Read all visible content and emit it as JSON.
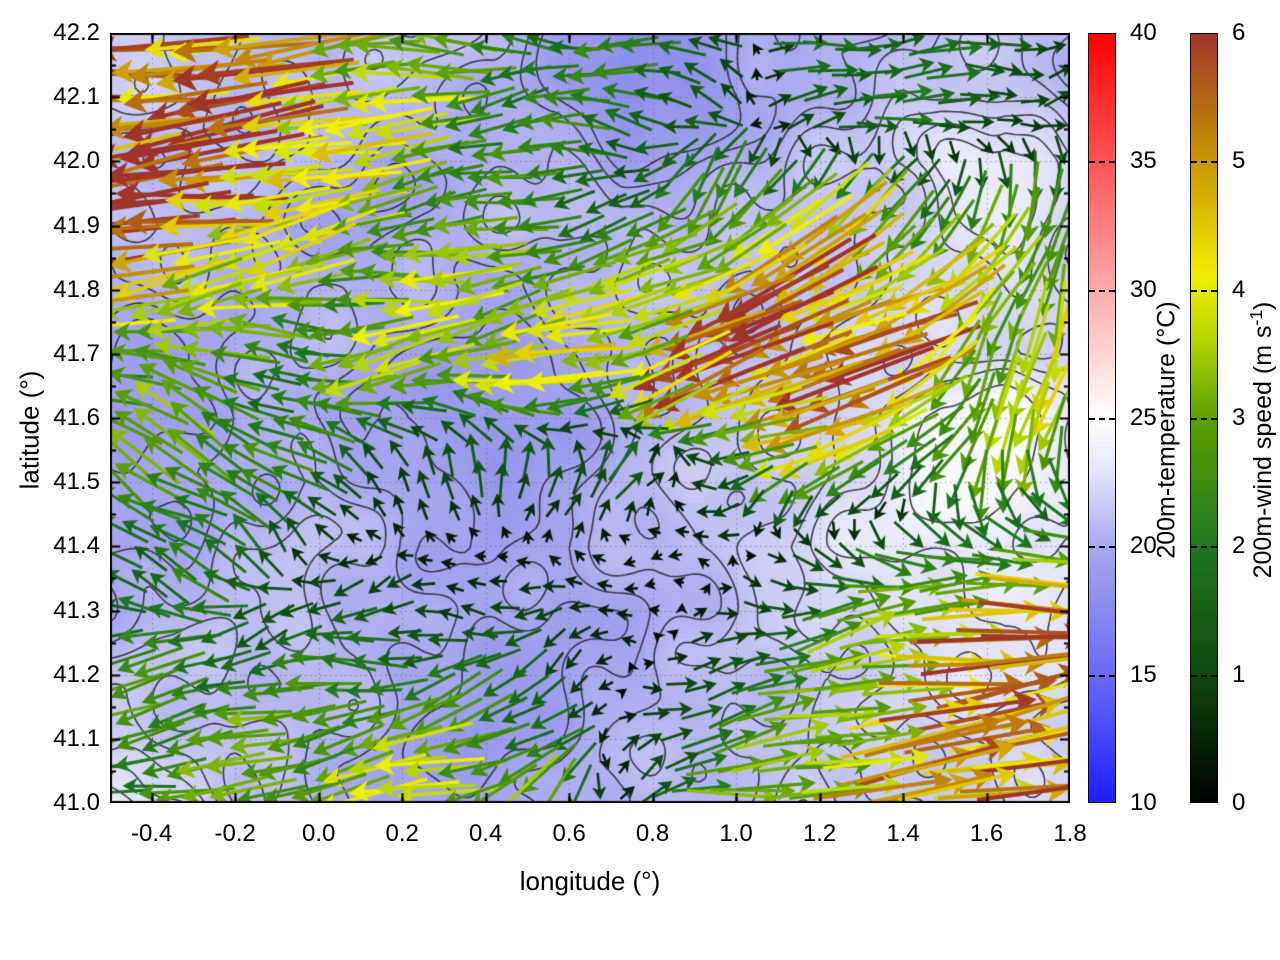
{
  "axes": {
    "xlabel": "longitude (°)",
    "ylabel": "latitude (°)",
    "xmin": -0.5,
    "xmax": 1.8,
    "ymin": 41.0,
    "ymax": 42.2,
    "xticks": [
      -0.4,
      -0.2,
      0.0,
      0.2,
      0.4,
      0.6,
      0.8,
      1.0,
      1.2,
      1.4,
      1.6,
      1.8
    ],
    "yticks": [
      41.0,
      41.1,
      41.2,
      41.3,
      41.4,
      41.5,
      41.6,
      41.7,
      41.8,
      41.9,
      42.0,
      42.1,
      42.2
    ]
  },
  "colorbars": [
    {
      "label": "200m-temperature (°C)",
      "min": 10,
      "max": 40,
      "ticks": [
        10,
        15,
        20,
        25,
        30,
        35,
        40
      ],
      "stops": [
        [
          10,
          "#1e1eff"
        ],
        [
          15,
          "#6a6af6"
        ],
        [
          18,
          "#9090ec"
        ],
        [
          20,
          "#a8a8f0"
        ],
        [
          21,
          "#bebef2"
        ],
        [
          22,
          "#d2d2f6"
        ],
        [
          23,
          "#e6e6fa"
        ],
        [
          25,
          "#ffffff"
        ],
        [
          30,
          "#ffaaaa"
        ],
        [
          35,
          "#ff5555"
        ],
        [
          40,
          "#ff0000"
        ]
      ]
    },
    {
      "label_pre": "200m-wind speed (m s",
      "label_sup": "-1",
      "label_post": ")",
      "min": 0,
      "max": 6,
      "ticks": [
        0,
        1,
        2,
        3,
        4,
        5,
        6
      ],
      "stops": [
        [
          0,
          "#000000"
        ],
        [
          1,
          "#0d4a0d"
        ],
        [
          2,
          "#1e781e"
        ],
        [
          3,
          "#5aa000"
        ],
        [
          3.6,
          "#b4d400"
        ],
        [
          4.1,
          "#f0f000"
        ],
        [
          5,
          "#c89600"
        ],
        [
          6,
          "#a03428"
        ]
      ]
    }
  ],
  "chart_data": {
    "type": "heatmap+vector_field+contours",
    "title": "",
    "temperature_field": {
      "units": "°C",
      "lon_range": [
        -0.5,
        1.8
      ],
      "lat_range": [
        41.0,
        42.2
      ],
      "cols": 16,
      "rows": 13,
      "order": "row-major from north (42.2) to south (41.0)",
      "values": [
        [
          21.5,
          21.5,
          21,
          21,
          21,
          21,
          20.5,
          19.5,
          18,
          18,
          20,
          20.5,
          20.5,
          21,
          21,
          20.5
        ],
        [
          21.5,
          21.5,
          21,
          21,
          21,
          20.5,
          20.5,
          19.5,
          17.5,
          18,
          20,
          20.5,
          21,
          21.5,
          21.5,
          21
        ],
        [
          21,
          21,
          21,
          20.5,
          20,
          20,
          20.5,
          20.5,
          19.5,
          20,
          20.5,
          21,
          21.5,
          23.5,
          24,
          22
        ],
        [
          21,
          21,
          20.5,
          20,
          19.5,
          20,
          20.5,
          21,
          21,
          21,
          21,
          21.5,
          21.5,
          22.5,
          23,
          22
        ],
        [
          20,
          20.5,
          20.5,
          20.5,
          20.5,
          20.5,
          20,
          20.5,
          21,
          21,
          21,
          21.5,
          22,
          22,
          22.5,
          22
        ],
        [
          19.5,
          19.5,
          20,
          20.5,
          20,
          19.5,
          19,
          19.5,
          20.5,
          21,
          21,
          21.5,
          22,
          22.5,
          22.5,
          22
        ],
        [
          19,
          19,
          20,
          20.5,
          19.5,
          19,
          18.5,
          19,
          20.5,
          21,
          21.5,
          22,
          22.5,
          24.5,
          25,
          23
        ],
        [
          19.5,
          19.5,
          20.5,
          20.5,
          20,
          19.5,
          19,
          19.5,
          20.5,
          21,
          21.5,
          22,
          23,
          24.5,
          24.5,
          23
        ],
        [
          20,
          20,
          20.5,
          21,
          20.5,
          20,
          19.5,
          20,
          20.5,
          21,
          21.5,
          22.5,
          23,
          23.5,
          23.5,
          23
        ],
        [
          20.5,
          20.5,
          21,
          21,
          20.5,
          20,
          19.5,
          19.5,
          20,
          20.5,
          21,
          22,
          22.5,
          23,
          23,
          22.5
        ],
        [
          21,
          21,
          21,
          21,
          20.5,
          19.5,
          19,
          19.5,
          20,
          20.5,
          21,
          21.5,
          22,
          22.5,
          23,
          22.5
        ],
        [
          21.5,
          21.5,
          21,
          20.5,
          20,
          19.5,
          19,
          19.5,
          20.5,
          21,
          21,
          21.5,
          21.5,
          22,
          22.5,
          22
        ],
        [
          24,
          22.5,
          21,
          20.5,
          20,
          19.5,
          19.5,
          20,
          21,
          21,
          21,
          21.5,
          21.5,
          21.5,
          22,
          22
        ]
      ],
      "contour_levels": [
        19.5,
        20,
        20.5,
        21,
        21.5,
        22,
        22.5,
        23,
        24
      ]
    },
    "wind_field": {
      "units": "m/s",
      "components": "[u_east, v_north]",
      "cols": 12,
      "rows": 10,
      "order": "row-major from north (42.2) to south (41.0)",
      "uv": [
        [
          [
            -5.5,
            -0.3
          ],
          [
            -5.5,
            -0.5
          ],
          [
            -4.5,
            -0.5
          ],
          [
            -3.5,
            -0.5
          ],
          [
            -2.5,
            0.3
          ],
          [
            -2.2,
            0.4
          ],
          [
            -2,
            0.5
          ],
          [
            -1.5,
            0.3
          ],
          [
            1.8,
            0.2
          ],
          [
            2,
            0
          ],
          [
            1.5,
            0.3
          ],
          [
            1,
            0.5
          ]
        ],
        [
          [
            -6,
            -0.5
          ],
          [
            -5.8,
            -0.6
          ],
          [
            -5,
            -0.8
          ],
          [
            -3.8,
            -0.6
          ],
          [
            -2.8,
            -0.4
          ],
          [
            -2.2,
            -0.3
          ],
          [
            -1.8,
            0.2
          ],
          [
            -1.2,
            0.2
          ],
          [
            1.5,
            0.1
          ],
          [
            1.8,
            0.2
          ],
          [
            1.2,
            0
          ],
          [
            0.8,
            0.3
          ]
        ],
        [
          [
            -5.8,
            -0.8
          ],
          [
            -5.5,
            -0.8
          ],
          [
            -4.2,
            -0.8
          ],
          [
            -3.2,
            -0.5
          ],
          [
            -2.5,
            -0.5
          ],
          [
            -2,
            -0.3
          ],
          [
            -1.5,
            -0.5
          ],
          [
            -1.5,
            -2.5
          ],
          [
            -2.5,
            -3
          ],
          [
            -2,
            -2
          ],
          [
            -1,
            -2
          ],
          [
            -0.5,
            -2.5
          ]
        ],
        [
          [
            -4.5,
            -1
          ],
          [
            -4,
            -0.8
          ],
          [
            -3,
            -0.5
          ],
          [
            -3,
            -0.5
          ],
          [
            -3.5,
            -0.5
          ],
          [
            -3.5,
            -0.8
          ],
          [
            -3,
            -1
          ],
          [
            -4.5,
            -1.8
          ],
          [
            -5,
            -2
          ],
          [
            -4.5,
            -2
          ],
          [
            -2,
            -3
          ],
          [
            -1,
            -3.5
          ]
        ],
        [
          [
            -3,
            0.5
          ],
          [
            -2.5,
            0.8
          ],
          [
            -2,
            0.5
          ],
          [
            -3,
            -0.3
          ],
          [
            -3.5,
            -0.5
          ],
          [
            -3.8,
            -0.8
          ],
          [
            -3.5,
            -1.2
          ],
          [
            -5,
            -1.8
          ],
          [
            -5.5,
            -2
          ],
          [
            -4.8,
            -1.8
          ],
          [
            -1.5,
            -3
          ],
          [
            -0.8,
            -3.5
          ]
        ],
        [
          [
            -2,
            1.5
          ],
          [
            -2.5,
            1.8
          ],
          [
            -2,
            1.2
          ],
          [
            -1,
            0.8
          ],
          [
            0.3,
            1.2
          ],
          [
            0.5,
            1.5
          ],
          [
            0.8,
            1.2
          ],
          [
            -1.5,
            -0.5
          ],
          [
            -3.5,
            -1.2
          ],
          [
            -2.5,
            -1
          ],
          [
            -0.5,
            -2.5
          ],
          [
            -0.5,
            -3
          ]
        ],
        [
          [
            -1.5,
            1
          ],
          [
            -1.8,
            1.2
          ],
          [
            -0.8,
            0.5
          ],
          [
            -0.3,
            0.2
          ],
          [
            -0.2,
            0.1
          ],
          [
            -0.2,
            0.2
          ],
          [
            -0.3,
            0.1
          ],
          [
            -0.5,
            0.3
          ],
          [
            1,
            -0.5
          ],
          [
            1.5,
            -0.5
          ],
          [
            2,
            -1
          ],
          [
            3,
            -0.5
          ]
        ],
        [
          [
            -2,
            -0.3
          ],
          [
            -1.8,
            -0.2
          ],
          [
            -1.5,
            -0.3
          ],
          [
            -1.5,
            -0.3
          ],
          [
            -1.2,
            -0.3
          ],
          [
            -1,
            -0.2
          ],
          [
            -0.5,
            0
          ],
          [
            0.8,
            0.2
          ],
          [
            2,
            0.3
          ],
          [
            3.5,
            0.5
          ],
          [
            5,
            0.5
          ],
          [
            5.5,
            0.6
          ]
        ],
        [
          [
            -2.5,
            -0.5
          ],
          [
            -2.8,
            -0.8
          ],
          [
            -2.5,
            -0.5
          ],
          [
            -3,
            -0.5
          ],
          [
            -2.5,
            -0.5
          ],
          [
            -1.5,
            -1.5
          ],
          [
            0.5,
            0.3
          ],
          [
            2,
            0.5
          ],
          [
            3,
            0.5
          ],
          [
            4,
            0.6
          ],
          [
            5,
            0.8
          ],
          [
            5.5,
            0.8
          ]
        ],
        [
          [
            -2,
            -0.5
          ],
          [
            -2.5,
            -0.5
          ],
          [
            -3,
            -0.8
          ],
          [
            -3.5,
            -0.8
          ],
          [
            -4,
            -1
          ],
          [
            -2,
            -2.5
          ],
          [
            1,
            0.3
          ],
          [
            2.5,
            0.5
          ],
          [
            3.5,
            0.5
          ],
          [
            4.5,
            0.8
          ],
          [
            5,
            0.8
          ],
          [
            5.5,
            1
          ]
        ]
      ]
    }
  }
}
